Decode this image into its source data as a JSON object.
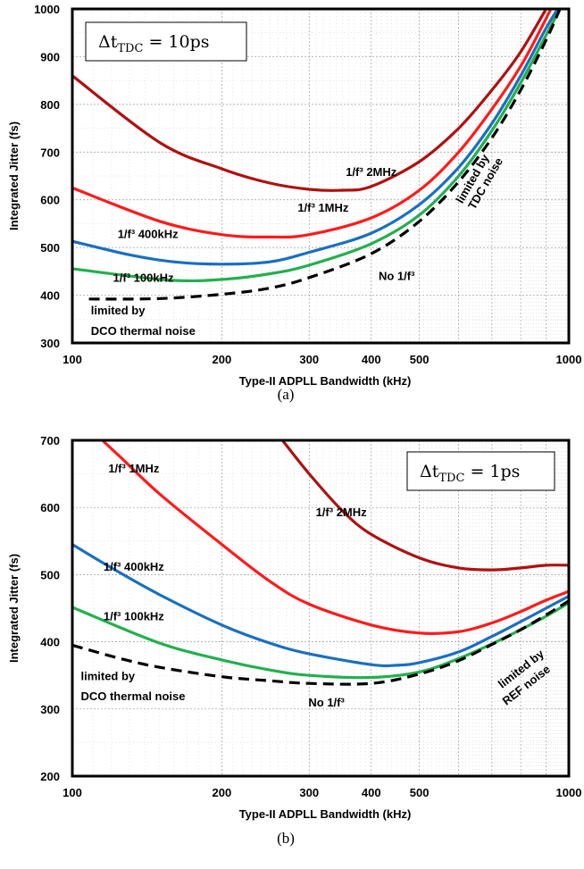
{
  "chart_data": [
    {
      "type": "line",
      "panel_caption": "(a)",
      "delta_label_main": "Δt",
      "delta_label_sub": "TDC",
      "delta_label_value": " = 10ps",
      "xlabel": "Type-II ADPLL Bandwidth (kHz)",
      "ylabel": "Integrated Jitter (fs)",
      "x_scale": "log",
      "xlim": [
        100,
        1000
      ],
      "ylim": [
        300,
        1000
      ],
      "x_ticks": [
        100,
        200,
        300,
        400,
        500,
        1000
      ],
      "x_tick_labels": [
        "100",
        "200",
        "300",
        "400",
        "500",
        "1000"
      ],
      "y_ticks": [
        300,
        400,
        500,
        600,
        700,
        800,
        900,
        1000
      ],
      "y_tick_labels": [
        "300",
        "400",
        "500",
        "600",
        "700",
        "800",
        "900",
        "1000"
      ],
      "grid": true,
      "series": [
        {
          "label": "1/f³ 2MHz",
          "color": "#b01010",
          "dashed": false,
          "points": [
            [
              100,
              860
            ],
            [
              150,
              720
            ],
            [
              200,
              665
            ],
            [
              250,
              635
            ],
            [
              300,
              622
            ],
            [
              350,
              620
            ],
            [
              400,
              628
            ],
            [
              500,
              680
            ],
            [
              600,
              750
            ],
            [
              700,
              830
            ],
            [
              800,
              910
            ],
            [
              900,
              1000
            ]
          ]
        },
        {
          "label": "1/f³ 1MHz",
          "color": "#ff1a1a",
          "dashed": false,
          "points": [
            [
              100,
              625
            ],
            [
              150,
              555
            ],
            [
              200,
              527
            ],
            [
              250,
              522
            ],
            [
              300,
              527
            ],
            [
              400,
              562
            ],
            [
              500,
              620
            ],
            [
              600,
              700
            ],
            [
              700,
              790
            ],
            [
              800,
              880
            ],
            [
              880,
              960
            ],
            [
              920,
              1000
            ]
          ]
        },
        {
          "label": "1/f³ 400kHz",
          "color": "#1a6fc1",
          "dashed": false,
          "points": [
            [
              100,
              513
            ],
            [
              130,
              485
            ],
            [
              160,
              470
            ],
            [
              200,
              465
            ],
            [
              250,
              470
            ],
            [
              300,
              490
            ],
            [
              400,
              530
            ],
            [
              500,
              590
            ],
            [
              600,
              668
            ],
            [
              700,
              760
            ],
            [
              800,
              860
            ],
            [
              900,
              960
            ],
            [
              950,
              1000
            ]
          ]
        },
        {
          "label": "1/f³ 100kHz",
          "color": "#22b04c",
          "dashed": false,
          "points": [
            [
              100,
              455
            ],
            [
              100.8,
              455
            ],
            [
              155,
              432
            ],
            [
              200,
              433
            ],
            [
              250,
              445
            ],
            [
              300,
              463
            ],
            [
              400,
              508
            ],
            [
              500,
              568
            ],
            [
              600,
              650
            ],
            [
              700,
              745
            ],
            [
              800,
              845
            ],
            [
              900,
              945
            ],
            [
              960,
              1000
            ]
          ]
        },
        {
          "label": "No 1/f³",
          "color": "#000000",
          "dashed": true,
          "points": [
            [
              108,
              392
            ],
            [
              150,
              393
            ],
            [
              200,
              402
            ],
            [
              250,
              415
            ],
            [
              300,
              437
            ],
            [
              400,
              487
            ],
            [
              500,
              555
            ],
            [
              600,
              638
            ],
            [
              700,
              730
            ],
            [
              800,
              830
            ],
            [
              900,
              935
            ],
            [
              960,
              1000
            ]
          ]
        }
      ],
      "annotations": [
        {
          "text": "1/f³ 2MHz",
          "x": 400,
          "y": 650,
          "rotate": 0
        },
        {
          "text": "1/f³ 1MHz",
          "x": 320,
          "y": 575,
          "rotate": 0
        },
        {
          "text": "1/f³ 400kHz",
          "x": 142,
          "y": 520,
          "rotate": 0
        },
        {
          "text": "1/f³ 100kHz",
          "x": 139,
          "y": 428,
          "rotate": 0
        },
        {
          "text": "No 1/f³",
          "x": 450,
          "y": 432,
          "rotate": 0
        },
        {
          "text": "limited by",
          "x": 109,
          "y": 360,
          "rotate": 0,
          "anchor": "start"
        },
        {
          "text": "DCO thermal noise",
          "x": 109,
          "y": 317,
          "rotate": 0,
          "anchor": "start"
        },
        {
          "text": "limited by",
          "x": 650,
          "y": 640,
          "rotate": -60
        },
        {
          "text": "TDC noise",
          "x": 690,
          "y": 630,
          "rotate": -60
        }
      ]
    },
    {
      "type": "line",
      "panel_caption": "(b)",
      "delta_label_main": "Δt",
      "delta_label_sub": "TDC",
      "delta_label_value": " = 1ps",
      "xlabel": "Type-II ADPLL Bandwidth (kHz)",
      "ylabel": "Integrated Jitter (fs)",
      "x_scale": "log",
      "xlim": [
        100,
        1000
      ],
      "ylim": [
        200,
        700
      ],
      "x_ticks": [
        100,
        200,
        300,
        400,
        500,
        1000
      ],
      "x_tick_labels": [
        "100",
        "200",
        "300",
        "400",
        "500",
        "1000"
      ],
      "y_ticks": [
        200,
        300,
        400,
        500,
        600,
        700
      ],
      "y_tick_labels": [
        "200",
        "300",
        "400",
        "500",
        "600",
        "700"
      ],
      "grid": true,
      "series": [
        {
          "label": "1/f³ 2MHz",
          "color": "#b01010",
          "dashed": false,
          "points": [
            [
              265,
              700
            ],
            [
              300,
              650
            ],
            [
              350,
              595
            ],
            [
              400,
              560
            ],
            [
              500,
              525
            ],
            [
              600,
              510
            ],
            [
              700,
              507
            ],
            [
              800,
              510
            ],
            [
              900,
              514
            ],
            [
              1000,
              514
            ]
          ]
        },
        {
          "label": "1/f³ 1MHz",
          "color": "#ff1a1a",
          "dashed": false,
          "points": [
            [
              115,
              700
            ],
            [
              125,
              675
            ],
            [
              150,
              620
            ],
            [
              200,
              545
            ],
            [
              250,
              490
            ],
            [
              300,
              456
            ],
            [
              400,
              425
            ],
            [
              500,
              413
            ],
            [
              600,
              415
            ],
            [
              700,
              428
            ],
            [
              800,
              445
            ],
            [
              900,
              462
            ],
            [
              1000,
              475
            ]
          ]
        },
        {
          "label": "1/f³ 400kHz",
          "color": "#1a6fc1",
          "dashed": false,
          "points": [
            [
              100,
              545
            ],
            [
              120,
              510
            ],
            [
              150,
              470
            ],
            [
              200,
              425
            ],
            [
              250,
              398
            ],
            [
              300,
              382
            ],
            [
              400,
              366
            ],
            [
              450,
              365
            ],
            [
              500,
              369
            ],
            [
              600,
              385
            ],
            [
              700,
              408
            ],
            [
              800,
              430
            ],
            [
              900,
              450
            ],
            [
              1000,
              468
            ]
          ]
        },
        {
          "label": "1/f³ 100kHz",
          "color": "#22b04c",
          "dashed": false,
          "points": [
            [
              100,
              452
            ],
            [
              104,
              446
            ],
            [
              150,
              398
            ],
            [
              200,
              373
            ],
            [
              250,
              358
            ],
            [
              300,
              350
            ],
            [
              400,
              347
            ],
            [
              500,
              355
            ],
            [
              600,
              375
            ],
            [
              700,
              397
            ],
            [
              800,
              418
            ],
            [
              900,
              438
            ],
            [
              1000,
              458
            ]
          ]
        },
        {
          "label": "No 1/f³",
          "color": "#000000",
          "dashed": true,
          "points": [
            [
              100,
              395
            ],
            [
              125,
              375
            ],
            [
              150,
              362
            ],
            [
              200,
              348
            ],
            [
              250,
              342
            ],
            [
              300,
              338
            ],
            [
              400,
              338
            ],
            [
              500,
              352
            ],
            [
              600,
              372
            ],
            [
              700,
              396
            ],
            [
              800,
              418
            ],
            [
              900,
              440
            ],
            [
              1000,
              461
            ]
          ]
        }
      ],
      "annotations": [
        {
          "text": "1/f³ 1MHz",
          "x": 133,
          "y": 652,
          "rotate": 0
        },
        {
          "text": "1/f³ 2MHz",
          "x": 348,
          "y": 587,
          "rotate": 0
        },
        {
          "text": "1/f³ 400kHz",
          "x": 133,
          "y": 506,
          "rotate": 0
        },
        {
          "text": "1/f³ 100kHz",
          "x": 133,
          "y": 432,
          "rotate": 0
        },
        {
          "text": "No 1/f³",
          "x": 325,
          "y": 304,
          "rotate": 0
        },
        {
          "text": "limited by",
          "x": 104,
          "y": 343,
          "rotate": 0,
          "anchor": "start"
        },
        {
          "text": "DCO thermal noise",
          "x": 104,
          "y": 313,
          "rotate": 0,
          "anchor": "start"
        },
        {
          "text": "limited by",
          "x": 810,
          "y": 355,
          "rotate": -38
        },
        {
          "text": "REF noise",
          "x": 830,
          "y": 331,
          "rotate": -38
        }
      ]
    }
  ]
}
